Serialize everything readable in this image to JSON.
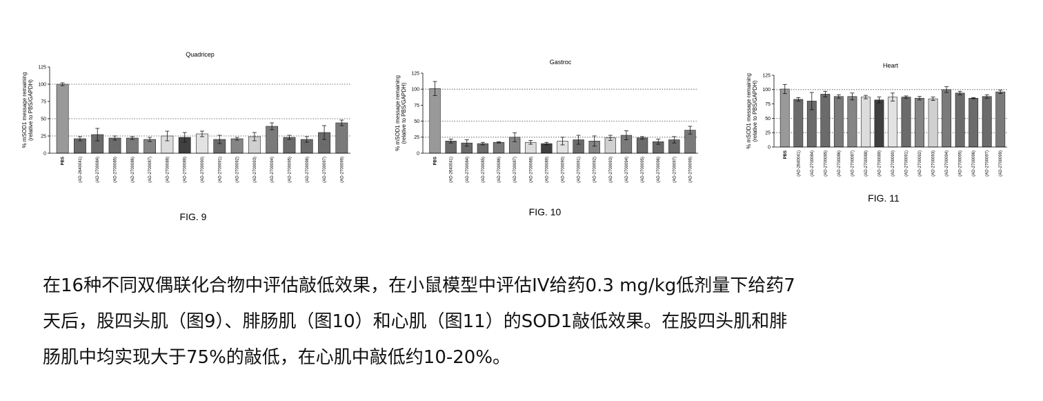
{
  "chart_data": [
    {
      "type": "bar",
      "figure_label": "FIG. 9",
      "title": "Quadricep",
      "ylabel_line1": "% mSOD1 message remaining",
      "ylabel_line2": "(relative to PBS/GAPDH)",
      "ylim": [
        0,
        125
      ],
      "yticks": [
        0,
        25,
        50,
        75,
        100,
        125
      ],
      "reference_lines": [
        100,
        50,
        25
      ],
      "categories": [
        "PBS",
        "(AD-2640041)",
        "(AD-2700084)",
        "(AD-2700085)",
        "(AD-2700086)",
        "(AD-2700087)",
        "(AD-2700088)",
        "(AD-2700089)",
        "(AD-2700090)",
        "(AD-2700091)",
        "(AD-2700092)",
        "(AD-2700093)",
        "(AD-2700094)",
        "(AD-2700095)",
        "(AD-2700096)",
        "(AD-2700097)",
        "(AD-2700099)"
      ],
      "values": [
        100,
        21,
        27,
        22,
        22,
        20,
        25,
        23,
        28,
        20,
        21,
        24,
        39,
        23,
        20,
        30,
        44
      ],
      "errors": [
        2,
        3,
        9,
        3,
        2,
        3,
        7,
        7,
        4,
        6,
        2,
        6,
        5,
        3,
        4,
        10,
        4
      ],
      "colors": [
        "#999999",
        "#6b6b6b",
        "#6b6b6b",
        "#6b6b6b",
        "#7a7a7a",
        "#858585",
        "#dcdcdc",
        "#404040",
        "#e2e2e2",
        "#6b6b6b",
        "#858585",
        "#d0d0d0",
        "#7a7a7a",
        "#6b6b6b",
        "#6b6b6b",
        "#6b6b6b",
        "#7a7a7a"
      ]
    },
    {
      "type": "bar",
      "figure_label": "FIG. 10",
      "title": "Gastroc",
      "ylabel_line1": "% mSOD1 message remaining",
      "ylabel_line2": "(relative to PBS/GAPDH)",
      "ylim": [
        0,
        125
      ],
      "yticks": [
        0,
        25,
        50,
        75,
        100,
        125
      ],
      "reference_lines": [
        100,
        50,
        25
      ],
      "categories": [
        "PBS",
        "(AD-2640041)",
        "(AD-2700084)",
        "(AD-2700085)",
        "(AD-2700086)",
        "(AD-2700087)",
        "(AD-2700088)",
        "(AD-2700089)",
        "(AD-2700090)",
        "(AD-2700091)",
        "(AD-2700092)",
        "(AD-2700093)",
        "(AD-2700094)",
        "(AD-2700095)",
        "(AD-2700096)",
        "(AD-2700097)",
        "(AD-2700099)"
      ],
      "values": [
        101,
        19,
        16,
        15,
        17,
        25,
        17,
        15,
        19,
        21,
        19,
        24,
        28,
        24,
        18,
        21,
        36
      ],
      "errors": [
        11,
        3,
        5,
        2,
        1,
        7,
        3,
        2,
        6,
        7,
        8,
        4,
        7,
        2,
        4,
        5,
        6
      ],
      "colors": [
        "#999999",
        "#6b6b6b",
        "#6b6b6b",
        "#6b6b6b",
        "#7a7a7a",
        "#858585",
        "#dcdcdc",
        "#404040",
        "#e2e2e2",
        "#6b6b6b",
        "#858585",
        "#d0d0d0",
        "#7a7a7a",
        "#6b6b6b",
        "#6b6b6b",
        "#6b6b6b",
        "#7a7a7a"
      ]
    },
    {
      "type": "bar",
      "figure_label": "FIG. 11",
      "title": "Heart",
      "ylabel_line1": "% mSOD1 message remaining",
      "ylabel_line2": "(relative to PBS/GAPDH)",
      "ylim": [
        0,
        125
      ],
      "yticks": [
        0,
        25,
        50,
        75,
        100,
        125
      ],
      "reference_lines": [
        100,
        50,
        25
      ],
      "categories": [
        "PBS",
        "(AD-2640041)",
        "(AD-2700084)",
        "(AD-2700085)",
        "(AD-2700086)",
        "(AD-2700087)",
        "(AD-2700088)",
        "(AD-2700089)",
        "(AD-2700090)",
        "(AD-2700091)",
        "(AD-2700092)",
        "(AD-2700093)",
        "(AD-2700094)",
        "(AD-2700095)",
        "(AD-2700096)",
        "(AD-2700097)",
        "(AD-2700099)"
      ],
      "values": [
        101,
        83,
        80,
        92,
        88,
        88,
        87,
        82,
        87,
        87,
        85,
        84,
        100,
        94,
        85,
        88,
        96
      ],
      "errors": [
        8,
        3,
        15,
        5,
        3,
        6,
        3,
        5,
        7,
        2,
        3,
        3,
        5,
        3,
        1,
        3,
        3
      ],
      "colors": [
        "#999999",
        "#6b6b6b",
        "#6b6b6b",
        "#6b6b6b",
        "#7a7a7a",
        "#858585",
        "#dcdcdc",
        "#404040",
        "#e2e2e2",
        "#6b6b6b",
        "#858585",
        "#d0d0d0",
        "#7a7a7a",
        "#6b6b6b",
        "#6b6b6b",
        "#6b6b6b",
        "#7a7a7a"
      ]
    }
  ],
  "caption": {
    "line1": "在16种不同双偶联化合物中评估敲低效果，在小鼠模型中评估IV给药0.3 mg/kg低剂量下给药7",
    "line2": "天后，股四头肌（图9）、腓肠肌（图10）和心肌（图11）的SOD1敲低效果。在股四头肌和腓",
    "line3": "肠肌中均实现大于75%的敲低，在心肌中敲低约10-20%。"
  }
}
